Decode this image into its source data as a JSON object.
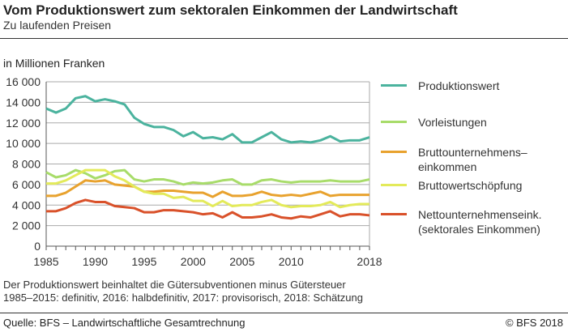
{
  "header": {
    "title": "Vom Produktionswert zum sektoralen Einkommen der Landwirtschaft",
    "subtitle": "Zu laufenden Preisen"
  },
  "chart_data": {
    "type": "line",
    "ylabel": "in Millionen Franken",
    "ylim": [
      0,
      16000
    ],
    "yticks": [
      "0",
      "2 000",
      "4 000",
      "6 000",
      "8 000",
      "10 000",
      "12 000",
      "14 000",
      "16 000"
    ],
    "xlim": [
      1985,
      2018
    ],
    "xticks": [
      "1985",
      "1990",
      "1995",
      "2000",
      "2005",
      "2010",
      "2018"
    ],
    "grid": true,
    "legend_position": "right",
    "x": [
      1985,
      1986,
      1987,
      1988,
      1989,
      1990,
      1991,
      1992,
      1993,
      1994,
      1995,
      1996,
      1997,
      1998,
      1999,
      2000,
      2001,
      2002,
      2003,
      2004,
      2005,
      2006,
      2007,
      2008,
      2009,
      2010,
      2011,
      2012,
      2013,
      2014,
      2015,
      2016,
      2017,
      2018
    ],
    "series": [
      {
        "name": "Produktionswert",
        "color": "#4bb39e",
        "values": [
          13400,
          13000,
          13400,
          14400,
          14600,
          14100,
          14300,
          14100,
          13800,
          12500,
          11900,
          11600,
          11600,
          11300,
          10700,
          11100,
          10500,
          10600,
          10400,
          10900,
          10100,
          10100,
          10600,
          11100,
          10400,
          10100,
          10200,
          10100,
          10300,
          10700,
          10200,
          10300,
          10300,
          10600
        ]
      },
      {
        "name": "Vorleistungen",
        "color": "#a8dc6a",
        "values": [
          7200,
          6700,
          6900,
          7400,
          7100,
          6600,
          6900,
          7300,
          7400,
          6500,
          6300,
          6500,
          6500,
          6300,
          6000,
          6200,
          6100,
          6200,
          6400,
          6500,
          6000,
          6000,
          6400,
          6500,
          6300,
          6200,
          6300,
          6300,
          6300,
          6400,
          6300,
          6300,
          6300,
          6500
        ]
      },
      {
        "name": "Bruttounternehmens–\neinkommen",
        "color": "#e8a22e",
        "values": [
          4900,
          4900,
          5200,
          5800,
          6400,
          6300,
          6400,
          6000,
          5900,
          5800,
          5300,
          5300,
          5400,
          5400,
          5300,
          5200,
          5200,
          4800,
          5300,
          4900,
          4900,
          5000,
          5300,
          5000,
          4900,
          5000,
          4900,
          5100,
          5300,
          4900,
          5000,
          5000,
          5000,
          5000
        ]
      },
      {
        "name": "Bruttowertschöpfung",
        "color": "#e3ea5a",
        "values": [
          6100,
          6100,
          6400,
          6900,
          7400,
          7400,
          7400,
          6800,
          6400,
          5800,
          5300,
          5100,
          5100,
          4700,
          4800,
          4400,
          4400,
          3900,
          4400,
          3900,
          4000,
          4000,
          4300,
          4500,
          4000,
          3800,
          3900,
          3900,
          4000,
          4300,
          3800,
          4000,
          4100,
          4100
        ]
      },
      {
        "name": "Nettounternehmenseink.\n(sektorales Einkommen)",
        "color": "#d9512a",
        "values": [
          3400,
          3400,
          3700,
          4200,
          4500,
          4300,
          4300,
          3900,
          3800,
          3700,
          3300,
          3300,
          3500,
          3500,
          3400,
          3300,
          3100,
          3200,
          2800,
          3300,
          2800,
          2800,
          2900,
          3100,
          2800,
          2700,
          2900,
          2800,
          3100,
          3400,
          2900,
          3100,
          3100,
          3000
        ]
      }
    ]
  },
  "footer": {
    "note1": "Der Produktionswert beinhaltet die Gütersubventionen minus Gütersteuer",
    "note2": "1985–2015: definitiv, 2016: halbdefinitiv, 2017: provisorisch, 2018: Schätzung",
    "source": "Quelle: BFS – Landwirtschaftliche Gesamtrechnung",
    "copyright": "© BFS  2018"
  }
}
